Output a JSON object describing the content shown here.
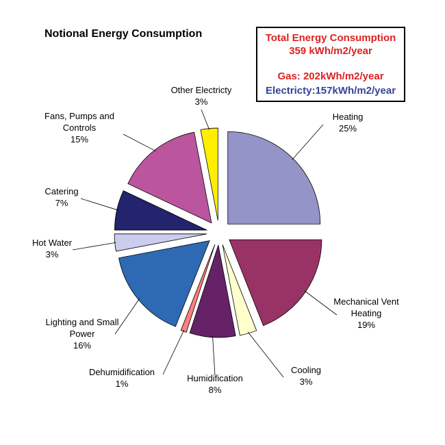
{
  "chart_data": {
    "type": "pie",
    "title": "Notional Energy Consumption",
    "slices": [
      {
        "label_lines": [
          "Heating"
        ],
        "pct_text": "25%",
        "value": 25,
        "color": "#9494c8"
      },
      {
        "label_lines": [
          "Mechanical Vent",
          "Heating"
        ],
        "pct_text": "19%",
        "value": 19,
        "color": "#993366"
      },
      {
        "label_lines": [
          "Cooling"
        ],
        "pct_text": "3%",
        "value": 3,
        "color": "#ffffcc"
      },
      {
        "label_lines": [
          "Humidification"
        ],
        "pct_text": "8%",
        "value": 8,
        "color": "#662266"
      },
      {
        "label_lines": [
          "Dehumidification"
        ],
        "pct_text": "1%",
        "value": 1,
        "color": "#ff8080"
      },
      {
        "label_lines": [
          "Lighting and Small",
          "Power"
        ],
        "pct_text": "16%",
        "value": 16,
        "color": "#2e6ab4"
      },
      {
        "label_lines": [
          "Hot Water"
        ],
        "pct_text": "3%",
        "value": 3,
        "color": "#ccccee"
      },
      {
        "label_lines": [
          "Catering"
        ],
        "pct_text": "7%",
        "value": 7,
        "color": "#23236e"
      },
      {
        "label_lines": [
          "Fans, Pumps and",
          "Controls"
        ],
        "pct_text": "15%",
        "value": 15,
        "color": "#bb559e"
      },
      {
        "label_lines": [
          "Other Electricty"
        ],
        "pct_text": "3%",
        "value": 3,
        "color": "#ffee00"
      }
    ],
    "summary_box": {
      "line1": "Total Energy Consumption",
      "line2": "359 kWh/m2/year",
      "line3": "Gas: 202kWh/m2/year",
      "line4": "Electricty:157kWh/m2/year",
      "total_color": "#dd2222",
      "gas_color": "#dd2222",
      "electricity_color": "#334499"
    }
  }
}
